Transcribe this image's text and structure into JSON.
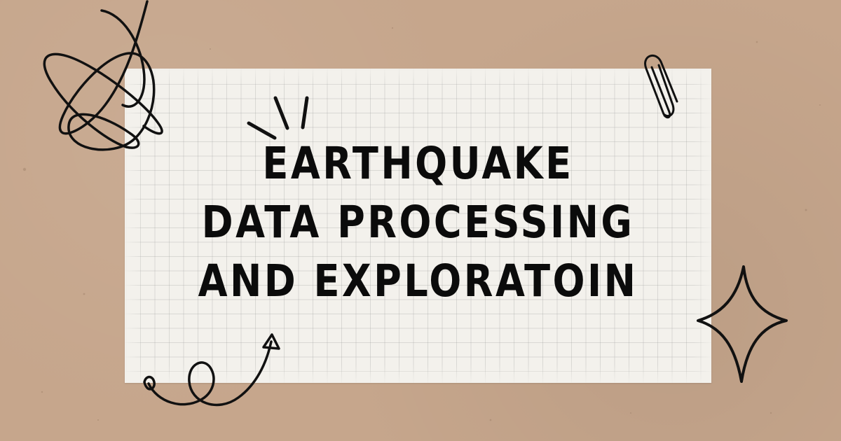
{
  "title": {
    "line1": "EARTHQUAKE",
    "line2": "DATA PROCESSING",
    "line3": "AND EXPLORATOIN"
  },
  "colors": {
    "background_kraft": "#c6a68c",
    "paper": "#f3f1ec",
    "ink": "#0b0b0b"
  },
  "icons": [
    "scribble-loops-icon",
    "sparkle-lines-icon",
    "paperclip-icon",
    "star-sparkle-icon",
    "curly-arrow-icon"
  ]
}
